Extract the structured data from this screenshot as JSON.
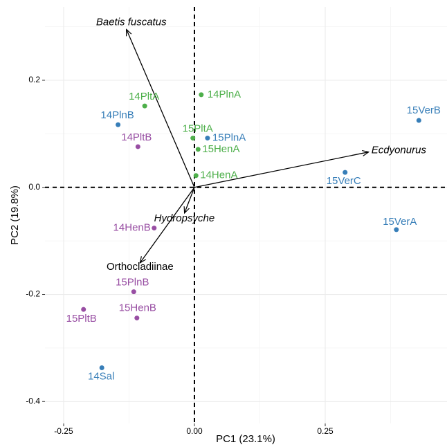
{
  "chart_data": {
    "type": "biplot",
    "x_label": "PC1 (23.1%)",
    "y_label": "PC2 (19.8%)",
    "xlim": [
      -0.2857,
      0.4828
    ],
    "ylim": [
      -0.441,
      0.337
    ],
    "xticks": [
      -0.25,
      {
        "value": 0,
        "label": "0.00"
      },
      0.25
    ],
    "yticks": [
      -0.4,
      -0.2,
      {
        "value": 0,
        "label": "0.0"
      },
      0.2
    ],
    "grid": true,
    "series": [
      {
        "color": "#4daf4a",
        "labels": [
          "14PltA",
          "14PlnA",
          "15PltA",
          "15HenA",
          "14HenA"
        ],
        "x": [
          -0.095,
          0.013,
          -0.003,
          0.007,
          0.003
        ],
        "values": [
          0.152,
          0.173,
          0.092,
          0.071,
          0.022
        ]
      },
      {
        "color": "#377eb8",
        "labels": [
          "14PlnB",
          "15PlnA",
          "15VerB",
          "15VerC",
          "15VerA",
          "14Sal"
        ],
        "x": [
          -0.146,
          0.025,
          0.429,
          0.288,
          0.386,
          -0.177
        ],
        "values": [
          0.117,
          0.092,
          0.125,
          0.028,
          -0.079,
          -0.337
        ]
      },
      {
        "color": "#984ea3",
        "labels": [
          "14PltB",
          "14HenB",
          "15PlnB",
          "15PltB",
          "15HenB"
        ],
        "x": [
          -0.108,
          -0.077,
          -0.116,
          -0.212,
          -0.11
        ],
        "values": [
          0.076,
          -0.076,
          -0.195,
          -0.228,
          -0.244
        ]
      }
    ],
    "loadings": [
      {
        "label": "Baetis fuscatus",
        "x": -0.13,
        "y": 0.295
      },
      {
        "label": "Ecdyonurus",
        "x": 0.333,
        "y": 0.066
      },
      {
        "label": "Hydropsyche",
        "x": -0.019,
        "y": -0.048
      },
      {
        "label": "Orthocladiinae",
        "x": -0.104,
        "y": -0.141
      }
    ]
  }
}
